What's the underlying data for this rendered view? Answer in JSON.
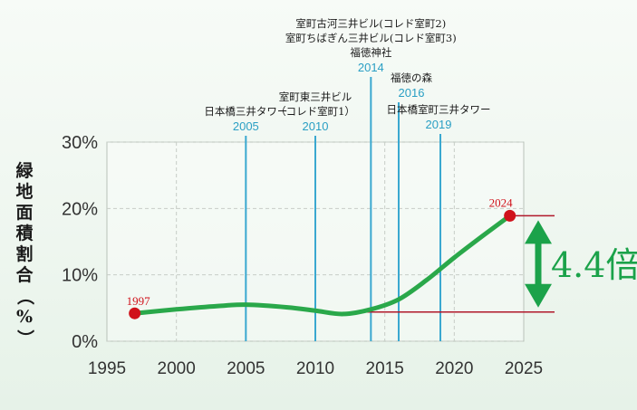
{
  "chart_data": {
    "type": "line",
    "ylabel": "緑地面積割合（%）",
    "xlim": [
      1995,
      2025
    ],
    "ylim": [
      0,
      30
    ],
    "xticks": [
      "1995",
      "2000",
      "2005",
      "2010",
      "2015",
      "2020",
      "2025"
    ],
    "yticks": [
      "0%",
      "10%",
      "20%",
      "30%"
    ],
    "grid": true,
    "series": [
      {
        "color": "#2aa84a",
        "x": [
          1997,
          2000,
          2003,
          2005,
          2008,
          2010,
          2012,
          2014,
          2016,
          2018,
          2020,
          2022,
          2024
        ],
        "y": [
          4.2,
          4.8,
          5.3,
          5.5,
          5.1,
          4.6,
          4.1,
          4.8,
          6.3,
          9.2,
          12.6,
          15.8,
          18.9
        ]
      }
    ],
    "points": [
      {
        "x": 1997,
        "y": 4.2,
        "label": "1997",
        "color": "#d0121b"
      },
      {
        "x": 2024,
        "y": 18.9,
        "label": "2024",
        "color": "#d0121b"
      }
    ],
    "reference_lines": [
      {
        "y": 18.9,
        "color": "#b0182a"
      },
      {
        "y": 4.4,
        "color": "#b0182a"
      }
    ],
    "annotations": [
      {
        "x": 2005,
        "year": "2005",
        "label_lines": [
          "日本橋三井タワー"
        ]
      },
      {
        "x": 2010,
        "year": "2010",
        "label_lines": [
          "室町東三井ビル",
          "（コレド室町1）"
        ]
      },
      {
        "x": 2014,
        "year": "2014",
        "label_lines": [
          "室町古河三井ビル(コレド室町2)",
          "室町ちばぎん三井ビル(コレド室町3)",
          "福徳神社"
        ]
      },
      {
        "x": 2016,
        "year": "2016",
        "label_lines": [
          "福徳の森"
        ]
      },
      {
        "x": 2019,
        "year": "2019",
        "label_lines": [
          "日本橋室町三井タワー"
        ]
      }
    ],
    "ratio_label": "4.4倍",
    "ratio_color": "#1ba24a"
  }
}
